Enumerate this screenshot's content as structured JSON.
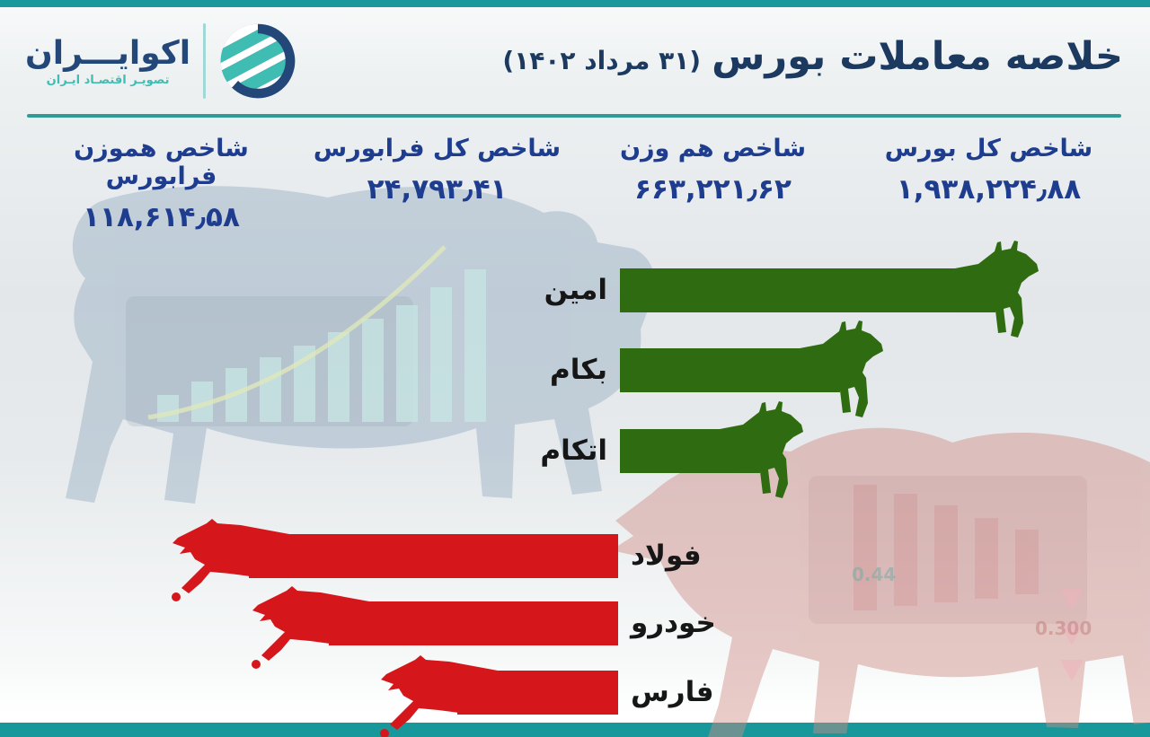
{
  "meta": {
    "language": "fa",
    "direction": "rtl"
  },
  "brand": {
    "name": "اکوایـــران",
    "tagline": "تصویـر اقتصـاد ایـران"
  },
  "header": {
    "title": "خلاصه معاملات بورس",
    "date": "(۳۱ مرداد ۱۴۰۲)"
  },
  "indices": [
    {
      "label": "شاخص کل بورس",
      "value": "۱,۹۳۸,۲۲۴٫۸۸"
    },
    {
      "label": "شاخص هم وزن",
      "value": "۶۶۳,۲۲۱٫۶۲"
    },
    {
      "label": "شاخص کل فرابورس",
      "value": "۲۴,۷۹۳٫۴۱"
    },
    {
      "label": "شاخص هموزن فرابورس",
      "value": "۱۱۸,۶۱۴٫۵۸"
    }
  ],
  "chart_data": {
    "type": "bar",
    "orientation": "horizontal",
    "values_labeled": false,
    "groups": [
      {
        "name": "top-gainers",
        "color": "#2f6b10",
        "marker": "bull",
        "bars": [
          {
            "label": "امین",
            "relative_length": 1.0
          },
          {
            "label": "بکام",
            "relative_length": 0.65
          },
          {
            "label": "اتکام",
            "relative_length": 0.47
          }
        ]
      },
      {
        "name": "top-losers",
        "color": "#d5161b",
        "marker": "bear",
        "bars": [
          {
            "label": "فولاد",
            "relative_length": 1.0
          },
          {
            "label": "خودرو",
            "relative_length": 0.82
          },
          {
            "label": "فارس",
            "relative_length": 0.53
          }
        ]
      }
    ]
  },
  "watermark": {
    "left": "bull-stock-art",
    "right": "bear-stock-art",
    "texture_labels": [
      "0.44",
      "0.300"
    ]
  },
  "colors": {
    "accent_teal": "#1a999c",
    "divider_teal": "#2f9b94",
    "title_navy": "#1c3a60",
    "index_blue": "#1e3d8f",
    "gain_green": "#2f6b10",
    "loss_red": "#d5161b",
    "label_black": "#161616",
    "logo_navy": "#24477a",
    "logo_teal": "#3fbdb2"
  }
}
